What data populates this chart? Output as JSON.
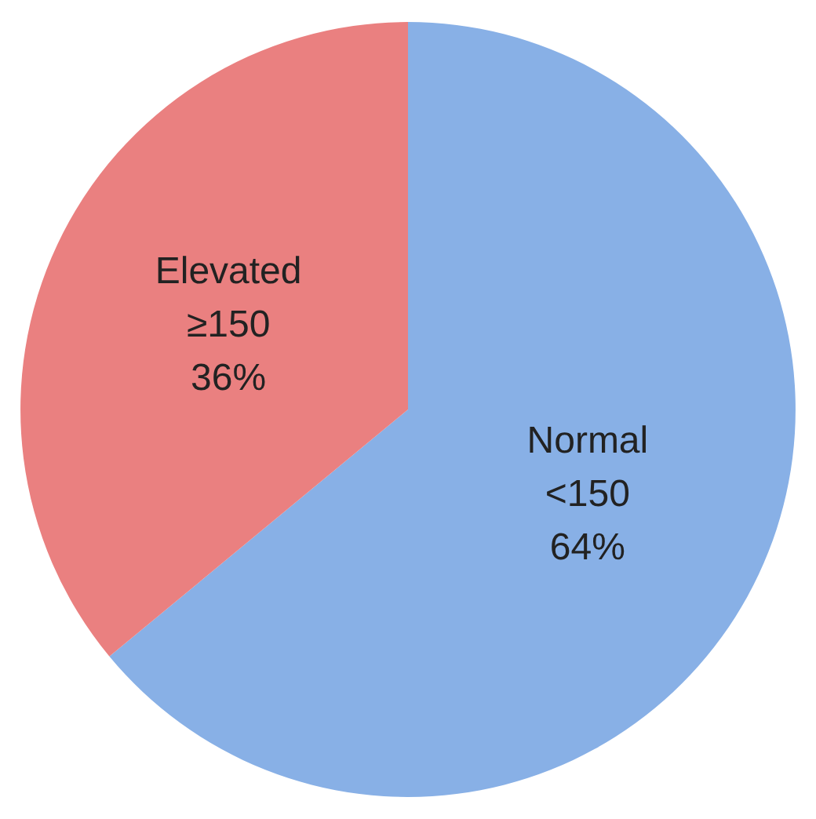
{
  "chart_data": {
    "type": "pie",
    "categories": [
      "Normal <150",
      "Elevated ≥150"
    ],
    "values": [
      64,
      36
    ],
    "colors": [
      "#88b0e6",
      "#ea8080"
    ],
    "value_labels": [
      "64%",
      "36%"
    ]
  }
}
